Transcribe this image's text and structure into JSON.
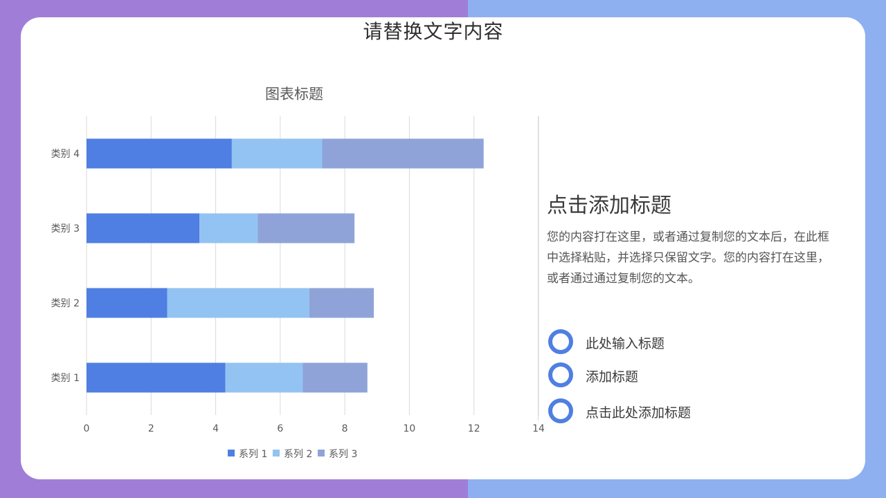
{
  "colors": {
    "bg_left": "#a07ed8",
    "bg_right": "#8fb0f0",
    "series": [
      "#4f7fe2",
      "#93c3f2",
      "#8fa3d8"
    ],
    "grid": "#d9d9d9",
    "text_muted": "#595959",
    "accent": "#4f7fe2"
  },
  "slide": {
    "title": "请替换文字内容"
  },
  "chart_data": {
    "type": "bar",
    "orientation": "horizontal",
    "stacked": true,
    "title": "图表标题",
    "categories": [
      "类别 4",
      "类别 3",
      "类别 2",
      "类别 1"
    ],
    "series": [
      {
        "name": "系列 1",
        "values": [
          4.5,
          3.5,
          2.5,
          4.3
        ]
      },
      {
        "name": "系列 2",
        "values": [
          2.8,
          1.8,
          4.4,
          2.4
        ]
      },
      {
        "name": "系列 3",
        "values": [
          5.0,
          3.0,
          2.0,
          2.0
        ]
      }
    ],
    "xlim": [
      0,
      14
    ],
    "xticks": [
      "0",
      "2",
      "4",
      "6",
      "8",
      "10",
      "12",
      "14"
    ],
    "grid": true,
    "legend": "bottom"
  },
  "sidebar": {
    "heading": "点击添加标题",
    "body": "您的内容打在这里，或者通过复制您的文本后，在此框中选择粘贴，并选择只保留文字。您的内容打在这里，或者通过通过复制您的文本。",
    "items": [
      {
        "label": "此处输入标题"
      },
      {
        "label": "添加标题"
      },
      {
        "label": "点击此处添加标题"
      }
    ]
  }
}
